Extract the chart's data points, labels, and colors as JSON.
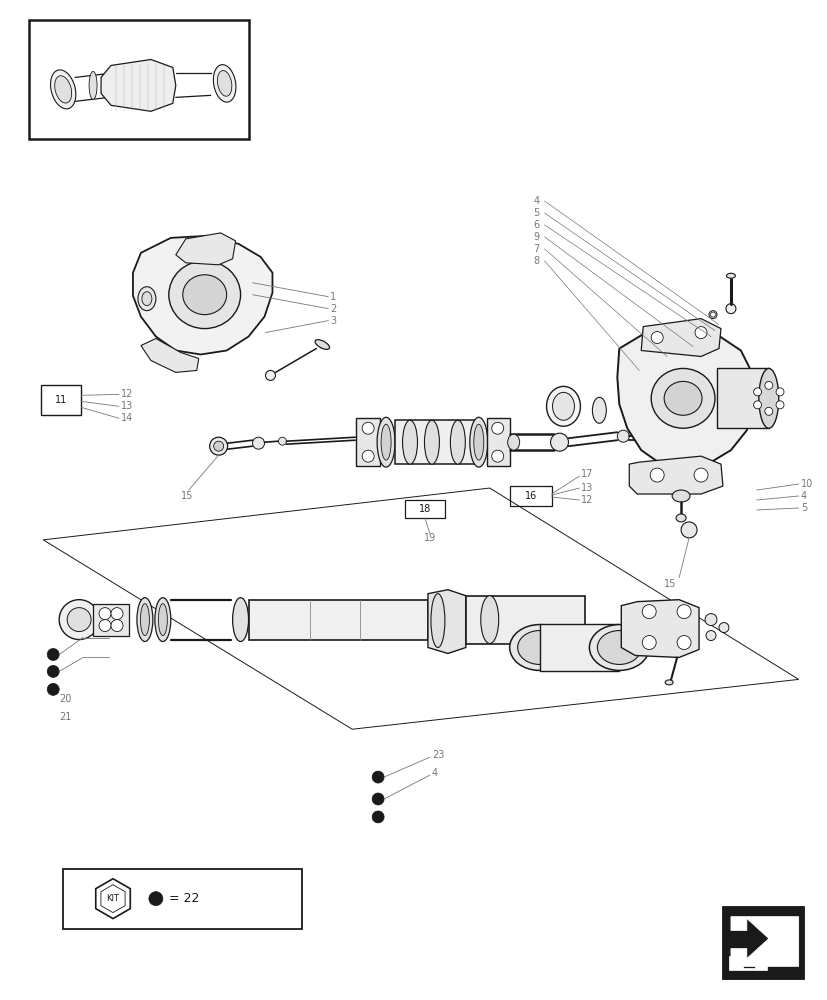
{
  "bg_color": "#ffffff",
  "lc": "#1a1a1a",
  "gray": "#777777",
  "lt_gray": "#bbbbbb",
  "fig_w": 8.28,
  "fig_h": 10.0,
  "dpi": 100
}
